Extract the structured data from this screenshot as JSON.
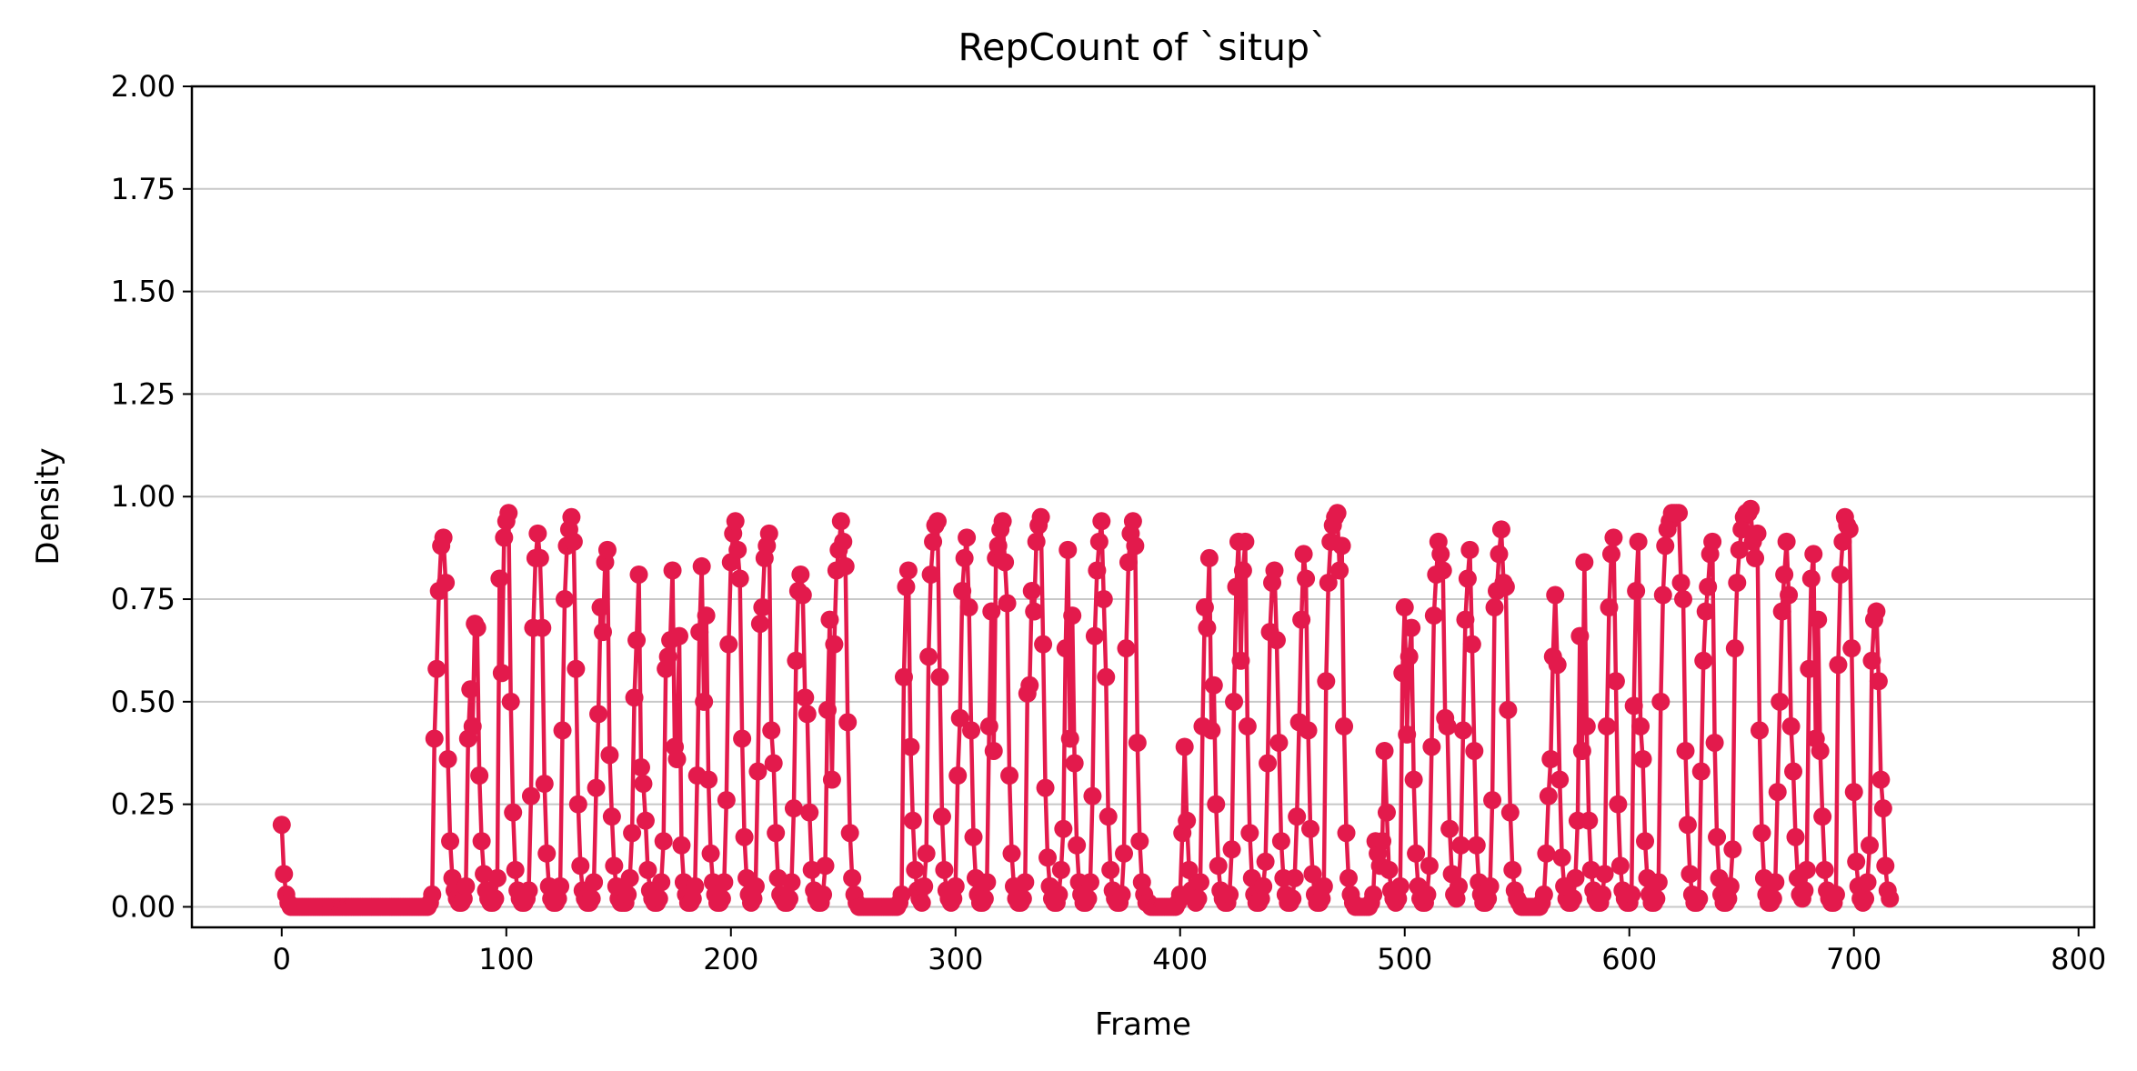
{
  "chart_data": {
    "type": "line",
    "title": "RepCount of `situp`",
    "xlabel": "Frame",
    "ylabel": "Density",
    "xlim": [
      -40,
      807
    ],
    "ylim": [
      -0.05,
      2.0
    ],
    "x_ticks": [
      "0",
      "100",
      "200",
      "300",
      "400",
      "500",
      "600",
      "700",
      "800"
    ],
    "x_tick_values": [
      0,
      100,
      200,
      300,
      400,
      500,
      600,
      700,
      800
    ],
    "y_ticks": [
      "0.00",
      "0.25",
      "0.50",
      "0.75",
      "1.00",
      "1.25",
      "1.50",
      "1.75",
      "2.00"
    ],
    "y_tick_values": [
      0,
      0.25,
      0.5,
      0.75,
      1.0,
      1.25,
      1.5,
      1.75,
      2.0
    ],
    "grid": "horizontal",
    "legend": "none",
    "series": [
      {
        "color": "#e31a4c",
        "marker": "circle",
        "start_frame": 0,
        "values": [
          0.2,
          0.08,
          0.03,
          0.01,
          0,
          0,
          0,
          0,
          0,
          0,
          0,
          0,
          0,
          0,
          0,
          0,
          0,
          0,
          0,
          0,
          0,
          0,
          0,
          0,
          0,
          0,
          0,
          0,
          0,
          0,
          0,
          0,
          0,
          0,
          0,
          0,
          0,
          0,
          0,
          0,
          0,
          0,
          0,
          0,
          0,
          0,
          0,
          0,
          0,
          0,
          0,
          0,
          0,
          0,
          0,
          0,
          0,
          0,
          0,
          0,
          0,
          0,
          0,
          0,
          0,
          0,
          0.01,
          0.03,
          0.41,
          0.58,
          0.77,
          0.88,
          0.9,
          0.79,
          0.36,
          0.16,
          0.07,
          0.04,
          0.02,
          0.01,
          0.01,
          0.02,
          0.05,
          0.41,
          0.53,
          0.44,
          0.69,
          0.68,
          0.32,
          0.16,
          0.08,
          0.04,
          0.02,
          0.01,
          0.01,
          0.02,
          0.07,
          0.8,
          0.57,
          0.9,
          0.94,
          0.96,
          0.5,
          0.23,
          0.09,
          0.04,
          0.02,
          0.01,
          0.01,
          0.02,
          0.04,
          0.27,
          0.68,
          0.85,
          0.91,
          0.85,
          0.68,
          0.3,
          0.13,
          0.05,
          0.02,
          0.01,
          0.01,
          0.02,
          0.05,
          0.43,
          0.75,
          0.88,
          0.92,
          0.95,
          0.89,
          0.58,
          0.25,
          0.1,
          0.04,
          0.02,
          0.01,
          0.01,
          0.02,
          0.06,
          0.29,
          0.47,
          0.73,
          0.67,
          0.84,
          0.87,
          0.37,
          0.22,
          0.1,
          0.05,
          0.02,
          0.01,
          0.01,
          0.01,
          0.03,
          0.07,
          0.18,
          0.51,
          0.65,
          0.81,
          0.34,
          0.3,
          0.21,
          0.09,
          0.04,
          0.02,
          0.01,
          0.01,
          0.02,
          0.06,
          0.16,
          0.58,
          0.61,
          0.65,
          0.82,
          0.39,
          0.36,
          0.66,
          0.15,
          0.06,
          0.03,
          0.01,
          0.01,
          0.02,
          0.05,
          0.32,
          0.67,
          0.83,
          0.5,
          0.71,
          0.31,
          0.13,
          0.06,
          0.03,
          0.01,
          0.01,
          0.02,
          0.06,
          0.26,
          0.64,
          0.84,
          0.91,
          0.94,
          0.87,
          0.8,
          0.41,
          0.17,
          0.07,
          0.03,
          0.01,
          0.02,
          0.05,
          0.33,
          0.69,
          0.73,
          0.85,
          0.88,
          0.91,
          0.43,
          0.35,
          0.18,
          0.07,
          0.03,
          0.02,
          0.01,
          0.01,
          0.02,
          0.06,
          0.24,
          0.6,
          0.77,
          0.81,
          0.76,
          0.51,
          0.47,
          0.23,
          0.09,
          0.04,
          0.02,
          0.01,
          0.01,
          0.03,
          0.1,
          0.48,
          0.7,
          0.31,
          0.64,
          0.82,
          0.87,
          0.94,
          0.89,
          0.83,
          0.45,
          0.18,
          0.07,
          0.03,
          0.01,
          0,
          0,
          0,
          0,
          0,
          0,
          0,
          0,
          0,
          0,
          0,
          0,
          0,
          0,
          0,
          0,
          0,
          0,
          0.01,
          0.03,
          0.56,
          0.78,
          0.82,
          0.39,
          0.21,
          0.09,
          0.04,
          0.02,
          0.01,
          0.05,
          0.13,
          0.61,
          0.81,
          0.89,
          0.93,
          0.94,
          0.56,
          0.22,
          0.09,
          0.04,
          0.02,
          0.01,
          0.02,
          0.05,
          0.32,
          0.46,
          0.77,
          0.85,
          0.9,
          0.73,
          0.43,
          0.17,
          0.07,
          0.03,
          0.01,
          0.01,
          0.02,
          0.06,
          0.44,
          0.72,
          0.38,
          0.85,
          0.88,
          0.92,
          0.94,
          0.84,
          0.74,
          0.32,
          0.13,
          0.05,
          0.02,
          0.01,
          0.01,
          0.02,
          0.06,
          0.52,
          0.54,
          0.77,
          0.72,
          0.89,
          0.93,
          0.95,
          0.64,
          0.29,
          0.12,
          0.05,
          0.02,
          0.01,
          0.01,
          0.03,
          0.09,
          0.19,
          0.63,
          0.87,
          0.41,
          0.71,
          0.35,
          0.15,
          0.06,
          0.03,
          0.01,
          0.01,
          0.02,
          0.06,
          0.27,
          0.66,
          0.82,
          0.89,
          0.94,
          0.75,
          0.56,
          0.22,
          0.09,
          0.04,
          0.02,
          0.01,
          0.01,
          0.03,
          0.13,
          0.63,
          0.84,
          0.91,
          0.94,
          0.88,
          0.4,
          0.16,
          0.06,
          0.03,
          0.01,
          0.01,
          0,
          0,
          0,
          0,
          0,
          0,
          0,
          0,
          0,
          0,
          0,
          0,
          0.01,
          0.03,
          0.18,
          0.39,
          0.21,
          0.09,
          0.04,
          0.02,
          0.01,
          0.02,
          0.06,
          0.44,
          0.73,
          0.68,
          0.85,
          0.43,
          0.54,
          0.25,
          0.1,
          0.04,
          0.02,
          0.01,
          0.01,
          0.03,
          0.14,
          0.5,
          0.78,
          0.89,
          0.6,
          0.82,
          0.89,
          0.44,
          0.18,
          0.07,
          0.03,
          0.01,
          0.01,
          0.02,
          0.05,
          0.11,
          0.35,
          0.67,
          0.79,
          0.82,
          0.65,
          0.4,
          0.16,
          0.07,
          0.03,
          0.01,
          0.01,
          0.02,
          0.07,
          0.22,
          0.45,
          0.7,
          0.86,
          0.8,
          0.43,
          0.19,
          0.08,
          0.03,
          0.01,
          0.01,
          0.02,
          0.05,
          0.55,
          0.79,
          0.89,
          0.93,
          0.95,
          0.96,
          0.82,
          0.88,
          0.44,
          0.18,
          0.07,
          0.03,
          0.01,
          0,
          0,
          0,
          0,
          0,
          0,
          0,
          0.01,
          0.03,
          0.16,
          0.13,
          0.1,
          0.16,
          0.38,
          0.23,
          0.09,
          0.04,
          0.02,
          0.01,
          0.02,
          0.05,
          0.57,
          0.73,
          0.42,
          0.61,
          0.68,
          0.31,
          0.13,
          0.05,
          0.02,
          0.01,
          0.01,
          0.03,
          0.1,
          0.39,
          0.71,
          0.81,
          0.89,
          0.86,
          0.82,
          0.46,
          0.44,
          0.19,
          0.08,
          0.03,
          0.02,
          0.05,
          0.15,
          0.43,
          0.7,
          0.8,
          0.87,
          0.64,
          0.38,
          0.15,
          0.06,
          0.03,
          0.01,
          0.01,
          0.02,
          0.05,
          0.26,
          0.73,
          0.77,
          0.86,
          0.92,
          0.79,
          0.78,
          0.48,
          0.23,
          0.09,
          0.04,
          0.02,
          0.01,
          0,
          0,
          0,
          0,
          0,
          0,
          0,
          0,
          0,
          0.01,
          0.03,
          0.13,
          0.27,
          0.36,
          0.61,
          0.76,
          0.59,
          0.31,
          0.12,
          0.05,
          0.02,
          0.01,
          0.01,
          0.02,
          0.07,
          0.21,
          0.66,
          0.38,
          0.84,
          0.44,
          0.21,
          0.09,
          0.04,
          0.02,
          0.01,
          0.01,
          0.03,
          0.08,
          0.44,
          0.73,
          0.86,
          0.9,
          0.55,
          0.25,
          0.1,
          0.04,
          0.02,
          0.01,
          0.01,
          0.03,
          0.49,
          0.77,
          0.89,
          0.44,
          0.36,
          0.16,
          0.07,
          0.03,
          0.01,
          0.01,
          0.02,
          0.06,
          0.5,
          0.76,
          0.88,
          0.92,
          0.94,
          0.96,
          0.96,
          0.96,
          0.96,
          0.79,
          0.75,
          0.38,
          0.2,
          0.08,
          0.03,
          0.01,
          0.01,
          0.02,
          0.33,
          0.6,
          0.72,
          0.78,
          0.86,
          0.89,
          0.4,
          0.17,
          0.07,
          0.03,
          0.01,
          0.01,
          0.02,
          0.05,
          0.14,
          0.63,
          0.79,
          0.87,
          0.92,
          0.95,
          0.96,
          0.96,
          0.97,
          0.89,
          0.85,
          0.91,
          0.43,
          0.18,
          0.07,
          0.03,
          0.01,
          0.01,
          0.02,
          0.06,
          0.28,
          0.5,
          0.72,
          0.81,
          0.89,
          0.76,
          0.44,
          0.33,
          0.17,
          0.07,
          0.03,
          0.02,
          0.04,
          0.09,
          0.58,
          0.8,
          0.86,
          0.41,
          0.7,
          0.38,
          0.22,
          0.09,
          0.04,
          0.02,
          0.01,
          0.01,
          0.03,
          0.59,
          0.81,
          0.89,
          0.95,
          0.93,
          0.92,
          0.63,
          0.28,
          0.11,
          0.05,
          0.02,
          0.01,
          0.02,
          0.06,
          0.15,
          0.6,
          0.7,
          0.72,
          0.55,
          0.31,
          0.24,
          0.1,
          0.04,
          0.02
        ]
      }
    ]
  }
}
